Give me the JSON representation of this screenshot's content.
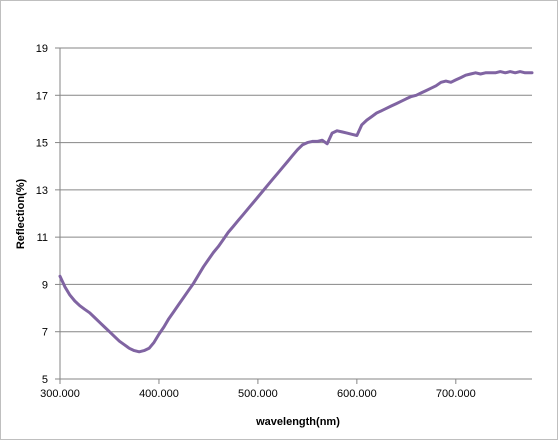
{
  "chart_data": {
    "type": "line",
    "xlabel": "wavelength(nm)",
    "ylabel": "Reflection(%)",
    "xlim": [
      300,
      777
    ],
    "ylim": [
      5,
      19
    ],
    "x_ticks": [
      300,
      400,
      500,
      600,
      700
    ],
    "x_tick_labels": [
      "300.000",
      "400.000",
      "500.000",
      "600.000",
      "700.000"
    ],
    "y_ticks": [
      5,
      7,
      9,
      11,
      13,
      15,
      17,
      19
    ],
    "y_tick_labels": [
      "5",
      "7",
      "9",
      "11",
      "13",
      "15",
      "17",
      "19"
    ],
    "grid": "horizontal",
    "legend": "none",
    "series": [
      {
        "color": "#8064a2",
        "points": [
          [
            300,
            9.35
          ],
          [
            305,
            8.9
          ],
          [
            310,
            8.55
          ],
          [
            315,
            8.3
          ],
          [
            320,
            8.1
          ],
          [
            325,
            7.95
          ],
          [
            330,
            7.8
          ],
          [
            335,
            7.6
          ],
          [
            340,
            7.4
          ],
          [
            345,
            7.2
          ],
          [
            350,
            7.0
          ],
          [
            355,
            6.8
          ],
          [
            360,
            6.6
          ],
          [
            365,
            6.45
          ],
          [
            370,
            6.3
          ],
          [
            375,
            6.2
          ],
          [
            380,
            6.15
          ],
          [
            385,
            6.2
          ],
          [
            390,
            6.3
          ],
          [
            395,
            6.55
          ],
          [
            400,
            6.9
          ],
          [
            405,
            7.2
          ],
          [
            410,
            7.55
          ],
          [
            415,
            7.85
          ],
          [
            420,
            8.15
          ],
          [
            425,
            8.45
          ],
          [
            430,
            8.75
          ],
          [
            435,
            9.05
          ],
          [
            440,
            9.4
          ],
          [
            445,
            9.75
          ],
          [
            450,
            10.05
          ],
          [
            455,
            10.35
          ],
          [
            460,
            10.6
          ],
          [
            465,
            10.9
          ],
          [
            470,
            11.2
          ],
          [
            475,
            11.45
          ],
          [
            480,
            11.7
          ],
          [
            485,
            11.95
          ],
          [
            490,
            12.2
          ],
          [
            495,
            12.45
          ],
          [
            500,
            12.7
          ],
          [
            505,
            12.95
          ],
          [
            510,
            13.2
          ],
          [
            515,
            13.45
          ],
          [
            520,
            13.7
          ],
          [
            525,
            13.95
          ],
          [
            530,
            14.2
          ],
          [
            535,
            14.45
          ],
          [
            540,
            14.7
          ],
          [
            545,
            14.9
          ],
          [
            550,
            15.0
          ],
          [
            555,
            15.05
          ],
          [
            560,
            15.05
          ],
          [
            565,
            15.1
          ],
          [
            570,
            14.95
          ],
          [
            575,
            15.4
          ],
          [
            580,
            15.5
          ],
          [
            585,
            15.45
          ],
          [
            590,
            15.4
          ],
          [
            595,
            15.35
          ],
          [
            600,
            15.3
          ],
          [
            605,
            15.75
          ],
          [
            610,
            15.95
          ],
          [
            615,
            16.1
          ],
          [
            620,
            16.25
          ],
          [
            625,
            16.35
          ],
          [
            630,
            16.45
          ],
          [
            635,
            16.55
          ],
          [
            640,
            16.65
          ],
          [
            645,
            16.75
          ],
          [
            650,
            16.85
          ],
          [
            655,
            16.95
          ],
          [
            660,
            17.0
          ],
          [
            665,
            17.1
          ],
          [
            670,
            17.2
          ],
          [
            675,
            17.3
          ],
          [
            680,
            17.4
          ],
          [
            685,
            17.55
          ],
          [
            690,
            17.6
          ],
          [
            695,
            17.55
          ],
          [
            700,
            17.65
          ],
          [
            705,
            17.75
          ],
          [
            710,
            17.85
          ],
          [
            715,
            17.9
          ],
          [
            720,
            17.95
          ],
          [
            725,
            17.9
          ],
          [
            730,
            17.95
          ],
          [
            735,
            17.95
          ],
          [
            740,
            17.95
          ],
          [
            745,
            18.0
          ],
          [
            750,
            17.95
          ],
          [
            755,
            18.0
          ],
          [
            760,
            17.95
          ],
          [
            765,
            18.0
          ],
          [
            770,
            17.95
          ],
          [
            777,
            17.95
          ]
        ]
      }
    ]
  }
}
